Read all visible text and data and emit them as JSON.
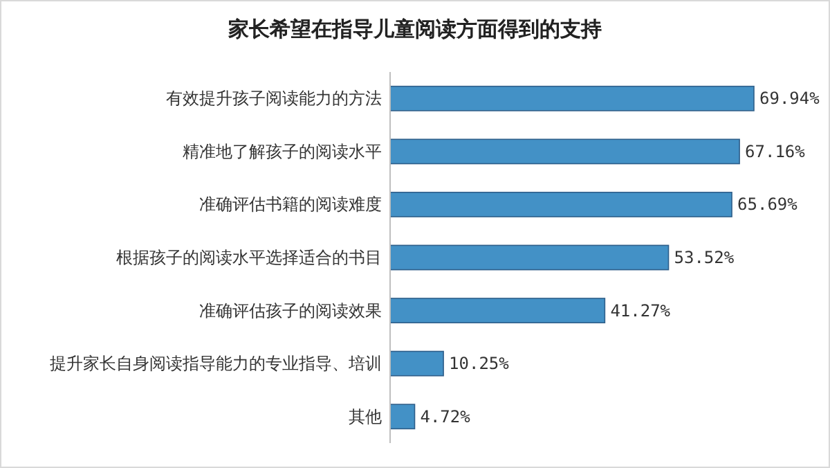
{
  "chart_data": {
    "type": "bar",
    "orientation": "horizontal",
    "title": "家长希望在指导儿童阅读方面得到的支持",
    "categories": [
      "有效提升孩子阅读能力的方法",
      "精准地了解孩子的阅读水平",
      "准确评估书籍的阅读难度",
      "根据孩子的阅读水平选择适合的书目",
      "准确评估孩子的阅读效果",
      "提升家长自身阅读指导能力的专业指导、培训",
      "其他"
    ],
    "values": [
      69.94,
      67.16,
      65.69,
      53.52,
      41.27,
      10.25,
      4.72
    ],
    "value_labels": [
      "69.94%",
      "67.16%",
      "65.69%",
      "53.52%",
      "41.27%",
      "10.25%",
      "4.72%"
    ],
    "color": "#4391c6"
  }
}
